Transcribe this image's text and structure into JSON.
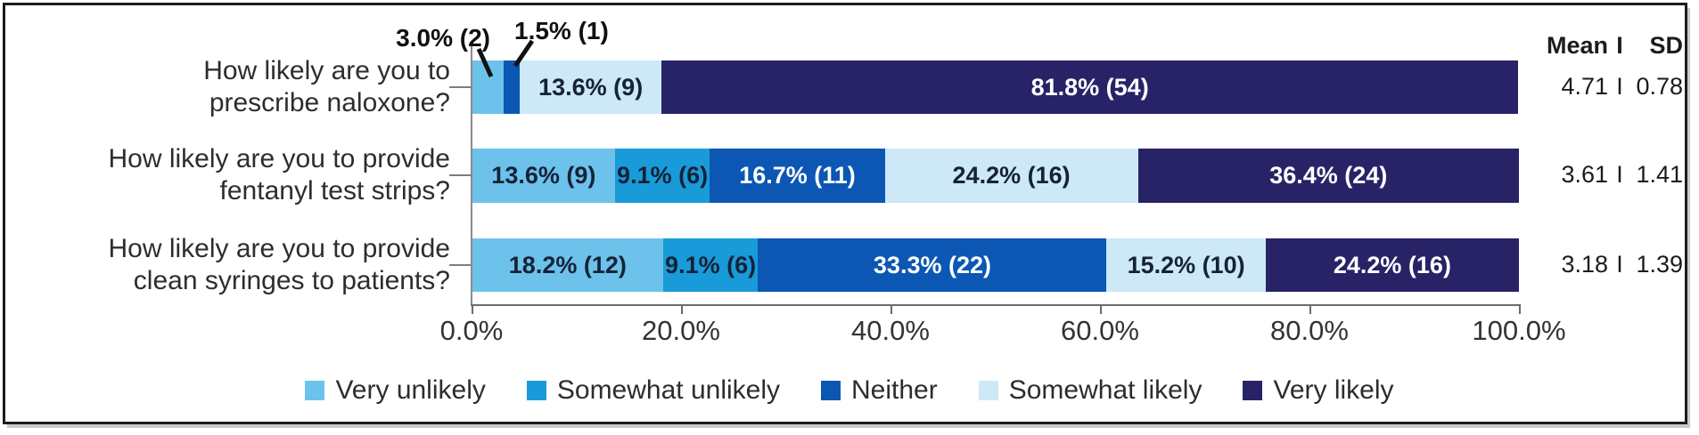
{
  "annotations": {
    "a1": "3.0% (2)",
    "a2": "1.5% (1)"
  },
  "mean_sd": {
    "header": {
      "mean": "Mean",
      "sep": "I",
      "sd": "SD"
    },
    "rows": [
      {
        "mean": "4.71",
        "sep": "I",
        "sd": "0.78"
      },
      {
        "mean": "3.61",
        "sep": "I",
        "sd": "1.41"
      },
      {
        "mean": "3.18",
        "sep": "I",
        "sd": "1.39"
      }
    ]
  },
  "chart_data": {
    "type": "bar",
    "orientation": "horizontal",
    "stacked": true,
    "title": "",
    "categories": [
      [
        "How likely are you to",
        "prescribe naloxone?"
      ],
      [
        "How likely are you to provide",
        "fentanyl test strips?"
      ],
      [
        "How likely are you to provide",
        "clean syringes to patients?"
      ]
    ],
    "series": [
      {
        "name": "Very unlikely",
        "color": "#6cc2ea",
        "label_color": "#152238",
        "values": [
          3.0,
          13.6,
          18.2
        ],
        "counts": [
          2,
          9,
          12
        ],
        "labels": [
          "3.0% (2)",
          "13.6% (9)",
          "18.2% (12)"
        ]
      },
      {
        "name": "Somewhat unlikely",
        "color": "#189bd8",
        "label_color": "#152238",
        "values": [
          0,
          9.1,
          9.1
        ],
        "counts": [
          0,
          6,
          6
        ],
        "labels": [
          "",
          "9.1% (6)",
          "9.1% (6)"
        ]
      },
      {
        "name": "Neither",
        "color": "#0b57b3",
        "label_color": "#ffffff",
        "values": [
          1.5,
          16.7,
          33.3
        ],
        "counts": [
          1,
          11,
          22
        ],
        "labels": [
          "1.5% (1)",
          "16.7% (11)",
          "33.3% (22)"
        ]
      },
      {
        "name": "Somewhat likely",
        "color": "#cde8f7",
        "label_color": "#152238",
        "values": [
          13.6,
          24.2,
          15.2
        ],
        "counts": [
          9,
          16,
          10
        ],
        "labels": [
          "13.6% (9)",
          "24.2% (16)",
          "15.2% (10)"
        ]
      },
      {
        "name": "Very likely",
        "color": "#282367",
        "label_color": "#ffffff",
        "values": [
          81.8,
          36.4,
          24.2
        ],
        "counts": [
          54,
          24,
          16
        ],
        "labels": [
          "81.8% (54)",
          "36.4% (24)",
          "24.2% (16)"
        ]
      }
    ],
    "x_ticks": [
      "0.0%",
      "20.0%",
      "40.0%",
      "60.0%",
      "80.0%",
      "100.0%"
    ],
    "xlim": [
      0,
      100
    ],
    "grid": false,
    "legend_position": "bottom"
  }
}
